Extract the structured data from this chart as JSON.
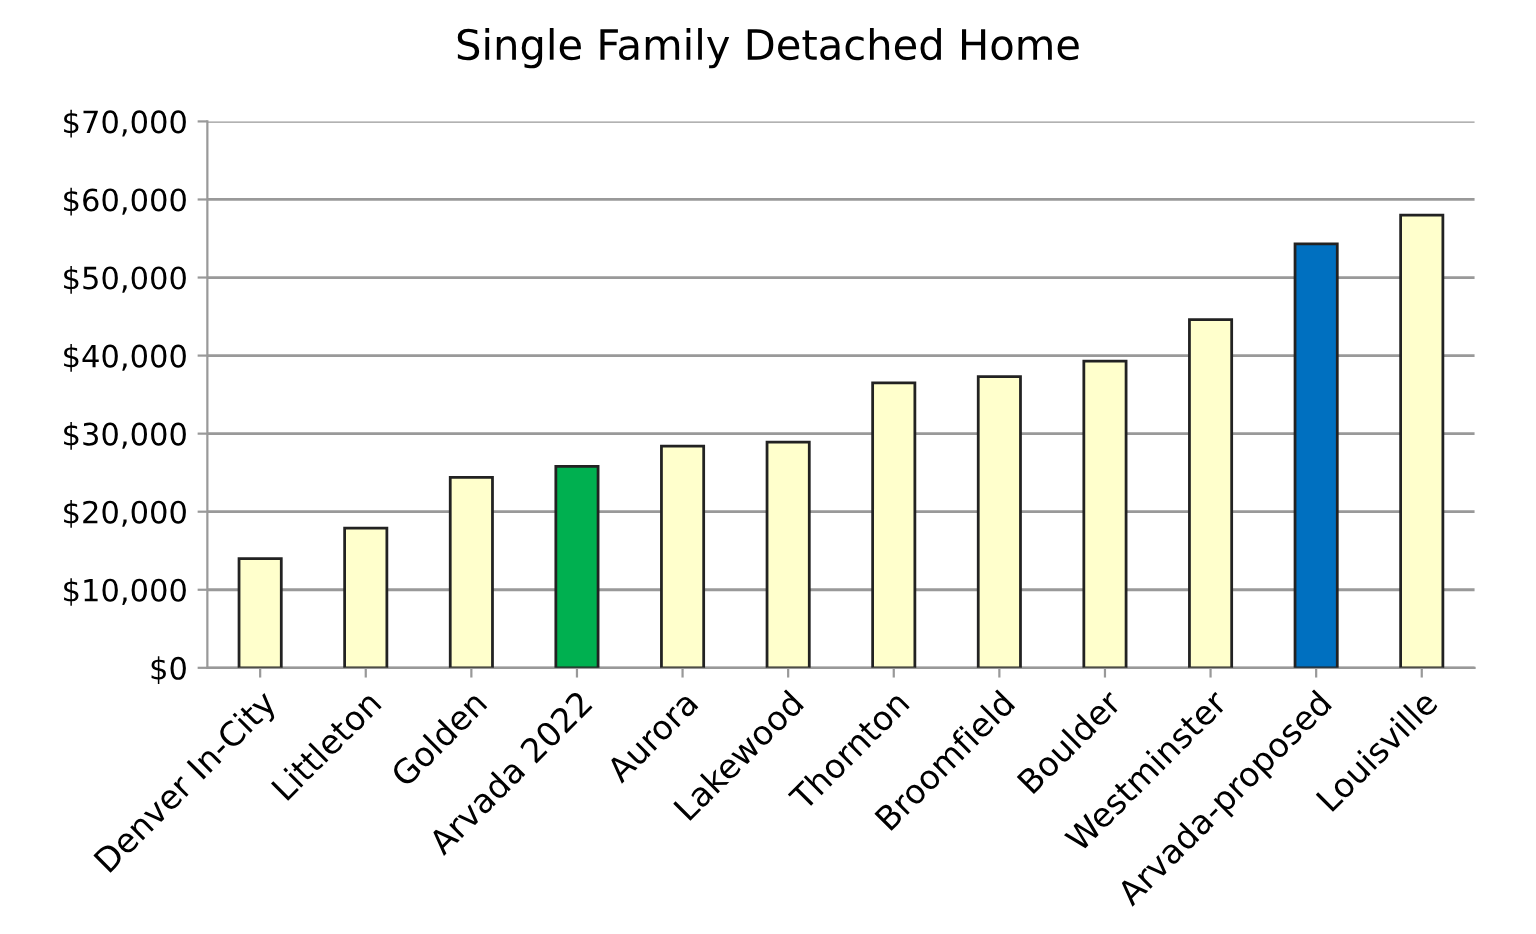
{
  "chart_data": {
    "type": "bar",
    "title": "Single Family Detached Home",
    "categories": [
      "Denver In-City",
      "Littleton",
      "Golden",
      "Arvada 2022",
      "Aurora",
      "Lakewood",
      "Thornton",
      "Broomfield",
      "Boulder",
      "Westminster",
      "Arvada-proposed",
      "Louisville"
    ],
    "values": [
      14000,
      17900,
      24400,
      25800,
      28400,
      28900,
      36500,
      37300,
      39300,
      44600,
      54300,
      58000
    ],
    "colors": [
      "#ffffcc",
      "#ffffcc",
      "#ffffcc",
      "#00b050",
      "#ffffcc",
      "#ffffcc",
      "#ffffcc",
      "#ffffcc",
      "#ffffcc",
      "#ffffcc",
      "#0070c0",
      "#ffffcc"
    ],
    "ylim": [
      0,
      70000
    ],
    "yticks": [
      {
        "value": 0,
        "label": "$0"
      },
      {
        "value": 10000,
        "label": "$10,000"
      },
      {
        "value": 20000,
        "label": "$20,000"
      },
      {
        "value": 30000,
        "label": "$30,000"
      },
      {
        "value": 40000,
        "label": "$40,000"
      },
      {
        "value": 50000,
        "label": "$50,000"
      },
      {
        "value": 60000,
        "label": "$60,000"
      },
      {
        "value": 70000,
        "label": "$70,000"
      }
    ],
    "grid": "y"
  }
}
